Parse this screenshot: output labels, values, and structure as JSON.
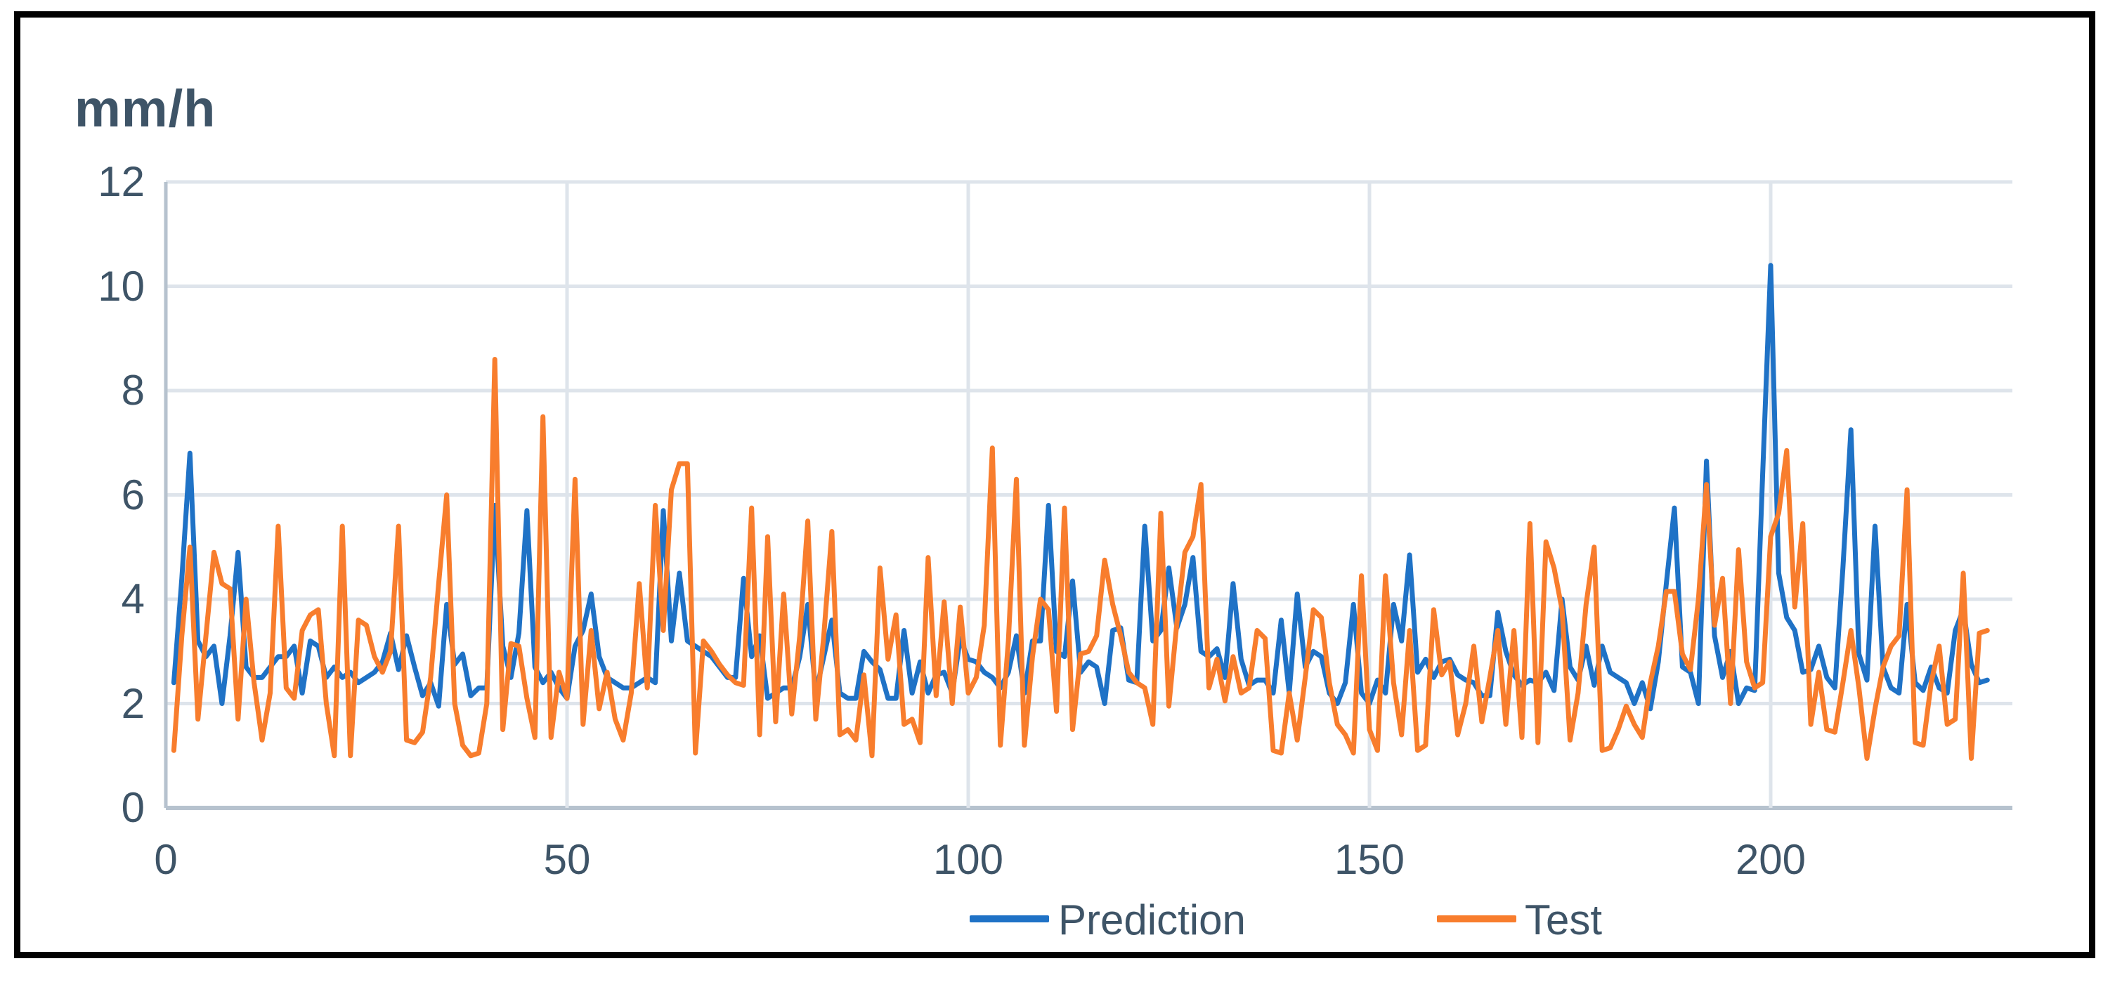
{
  "title": "mm/h",
  "legend": {
    "prediction_label": "Prediction",
    "test_label": "Test"
  },
  "colors": {
    "prediction": "#1F72C6",
    "test": "#F87D2D",
    "text": "#3E5467",
    "gridline": "#DEE4EB",
    "axis": "#B6C2CE",
    "frame": "#010101"
  },
  "chart_data": {
    "type": "line",
    "title": "mm/h",
    "xlabel": "",
    "ylabel": "mm/h",
    "x_start": 1,
    "xlim": [
      0,
      230
    ],
    "ylim": [
      0,
      12
    ],
    "x_ticks": [
      0,
      50,
      100,
      150,
      200
    ],
    "y_ticks": [
      0,
      2,
      4,
      6,
      8,
      10,
      12
    ],
    "grid": true,
    "legend_position": "bottom-center",
    "series": [
      {
        "name": "Prediction",
        "color": "#1F72C6",
        "values": [
          2.4,
          4.4,
          6.8,
          3.2,
          2.9,
          3.1,
          2.0,
          3.3,
          4.9,
          2.7,
          2.5,
          2.5,
          2.7,
          2.9,
          2.9,
          3.1,
          2.2,
          3.2,
          3.1,
          2.5,
          2.7,
          2.5,
          2.6,
          2.4,
          2.5,
          2.6,
          2.8,
          3.35,
          2.65,
          3.3,
          2.7,
          2.15,
          2.4,
          1.95,
          3.9,
          2.75,
          2.95,
          2.15,
          2.3,
          2.3,
          5.8,
          3.1,
          2.5,
          3.35,
          5.7,
          2.7,
          2.4,
          2.6,
          2.3,
          2.1,
          3.1,
          3.4,
          4.1,
          2.9,
          2.5,
          2.4,
          2.3,
          2.3,
          2.4,
          2.5,
          2.4,
          5.7,
          3.2,
          4.5,
          3.2,
          3.1,
          3.0,
          2.9,
          2.7,
          2.5,
          2.5,
          4.4,
          2.9,
          3.3,
          2.1,
          2.2,
          2.3,
          2.3,
          2.9,
          3.9,
          2.2,
          2.9,
          3.6,
          2.2,
          2.1,
          2.1,
          3.0,
          2.8,
          2.65,
          2.1,
          2.1,
          3.4,
          2.2,
          2.8,
          2.2,
          2.55,
          2.6,
          2.2,
          3.25,
          2.85,
          2.8,
          2.6,
          2.5,
          2.3,
          2.6,
          3.3,
          2.2,
          3.2,
          3.2,
          5.8,
          3.0,
          2.9,
          4.35,
          2.6,
          2.8,
          2.7,
          2.0,
          3.4,
          3.45,
          2.45,
          2.4,
          5.4,
          3.2,
          3.4,
          4.6,
          3.45,
          3.9,
          4.8,
          3.0,
          2.9,
          3.05,
          2.5,
          4.3,
          2.85,
          2.35,
          2.45,
          2.45,
          2.2,
          3.6,
          2.2,
          4.1,
          2.7,
          3.0,
          2.9,
          2.2,
          2.0,
          2.4,
          3.9,
          2.2,
          2.0,
          2.45,
          2.2,
          3.9,
          3.2,
          4.85,
          2.6,
          2.85,
          2.5,
          2.8,
          2.85,
          2.55,
          2.45,
          2.4,
          2.15,
          2.15,
          3.75,
          3.0,
          2.55,
          2.35,
          2.45,
          2.4,
          2.6,
          2.25,
          4.0,
          2.7,
          2.45,
          3.1,
          2.35,
          3.1,
          2.6,
          2.5,
          2.4,
          2.0,
          2.4,
          1.9,
          2.8,
          4.3,
          5.75,
          2.7,
          2.6,
          2.0,
          6.65,
          3.3,
          2.5,
          3.0,
          2.0,
          2.3,
          2.25,
          6.4,
          10.4,
          4.5,
          3.65,
          3.4,
          2.6,
          2.65,
          3.1,
          2.5,
          2.3,
          4.6,
          7.25,
          2.95,
          2.45,
          5.4,
          2.7,
          2.3,
          2.2,
          3.9,
          2.4,
          2.25,
          2.7,
          2.3,
          2.2,
          3.4,
          3.8,
          2.75,
          2.4,
          2.45
        ]
      },
      {
        "name": "Test",
        "color": "#F87D2D",
        "values": [
          1.1,
          3.3,
          5.0,
          1.7,
          3.3,
          4.9,
          4.3,
          4.2,
          1.7,
          4.0,
          2.4,
          1.3,
          2.2,
          5.4,
          2.3,
          2.1,
          3.4,
          3.7,
          3.8,
          2.0,
          1.0,
          5.4,
          1.0,
          3.6,
          3.5,
          2.9,
          2.6,
          3.0,
          5.4,
          1.3,
          1.25,
          1.45,
          2.5,
          4.3,
          6.0,
          2.0,
          1.2,
          1.0,
          1.05,
          2.0,
          8.6,
          1.5,
          3.15,
          3.1,
          2.1,
          1.35,
          7.5,
          1.35,
          2.6,
          2.1,
          6.3,
          1.6,
          3.4,
          1.9,
          2.6,
          1.7,
          1.3,
          2.2,
          4.3,
          2.3,
          5.8,
          3.4,
          6.1,
          6.6,
          6.6,
          1.05,
          3.2,
          3.0,
          2.75,
          2.55,
          2.4,
          2.35,
          5.75,
          1.4,
          5.2,
          1.65,
          4.1,
          1.8,
          3.3,
          5.5,
          1.7,
          3.3,
          5.3,
          1.4,
          1.5,
          1.3,
          2.55,
          1.0,
          4.6,
          2.85,
          3.7,
          1.6,
          1.7,
          1.25,
          4.8,
          2.15,
          3.95,
          2.0,
          3.85,
          2.2,
          2.5,
          3.5,
          6.9,
          1.2,
          3.2,
          6.3,
          1.2,
          2.9,
          4.0,
          3.8,
          1.85,
          5.75,
          1.5,
          2.95,
          3.0,
          3.3,
          4.75,
          3.9,
          3.3,
          2.6,
          2.4,
          2.3,
          1.6,
          5.65,
          1.95,
          3.55,
          4.9,
          5.2,
          6.2,
          2.3,
          2.85,
          2.05,
          2.9,
          2.2,
          2.3,
          3.4,
          3.25,
          1.1,
          1.05,
          2.2,
          1.3,
          2.5,
          3.8,
          3.65,
          2.4,
          1.6,
          1.4,
          1.05,
          4.45,
          1.5,
          1.1,
          4.45,
          2.4,
          1.4,
          3.4,
          1.1,
          1.2,
          3.8,
          2.55,
          2.8,
          1.4,
          2.0,
          3.1,
          1.65,
          2.5,
          3.4,
          1.6,
          3.4,
          1.35,
          5.45,
          1.25,
          5.1,
          4.6,
          3.8,
          1.3,
          2.2,
          3.9,
          5.0,
          1.1,
          1.15,
          1.5,
          1.95,
          1.6,
          1.35,
          2.4,
          3.1,
          4.15,
          4.15,
          2.95,
          2.65,
          4.0,
          6.2,
          3.5,
          4.4,
          2.0,
          4.95,
          2.8,
          2.3,
          2.4,
          5.2,
          5.65,
          6.85,
          3.85,
          5.45,
          1.6,
          2.6,
          1.5,
          1.45,
          2.4,
          3.4,
          2.3,
          0.95,
          1.9,
          2.7,
          3.1,
          3.3,
          6.1,
          1.25,
          1.2,
          2.4,
          3.1,
          1.6,
          1.7,
          4.5,
          0.95,
          3.35,
          3.4
        ]
      }
    ]
  }
}
